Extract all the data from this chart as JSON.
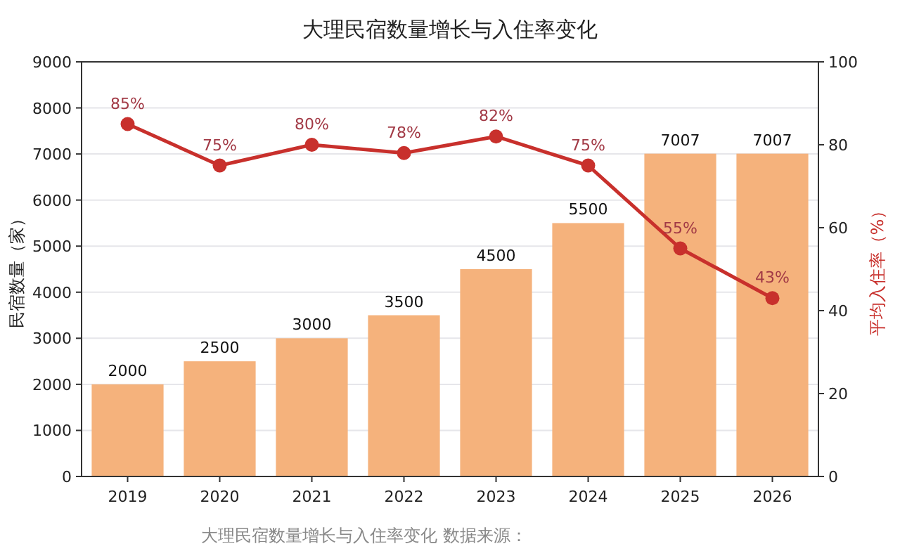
{
  "chart_data": {
    "type": "bar",
    "title": "大理民宿数量增长与入住率变化",
    "ylabel": "民宿数量（家）",
    "y2label": "平均入住率（%）",
    "categories": [
      "2019",
      "2020",
      "2021",
      "2022",
      "2023",
      "2024",
      "2025",
      "2026"
    ],
    "series": [
      {
        "color": "#f5b27c",
        "values": [
          2000,
          2500,
          3000,
          3500,
          4500,
          5500,
          7007,
          7007
        ],
        "value_labels": [
          "2000",
          "2500",
          "3000",
          "3500",
          "4500",
          "5500",
          "7007",
          "7007"
        ]
      },
      {
        "type": "line",
        "axis": "y2",
        "color": "#c8302c",
        "values": [
          85,
          75,
          80,
          78,
          82,
          75,
          55,
          43
        ],
        "value_labels": [
          "85%",
          "75%",
          "80%",
          "78%",
          "82%",
          "75%",
          "55%",
          "43%"
        ]
      }
    ],
    "ylim": [
      0,
      9000
    ],
    "yticks": [
      0,
      1000,
      2000,
      3000,
      4000,
      5000,
      6000,
      7000,
      8000,
      9000
    ],
    "y2lim": [
      0,
      100
    ],
    "y2ticks": [
      0,
      20,
      40,
      60,
      80,
      100
    ],
    "grid": "y",
    "marker": "circle",
    "line_style": "solid",
    "annotations": [
      "大理民宿数量增长与入住率变化 数据来源："
    ]
  }
}
